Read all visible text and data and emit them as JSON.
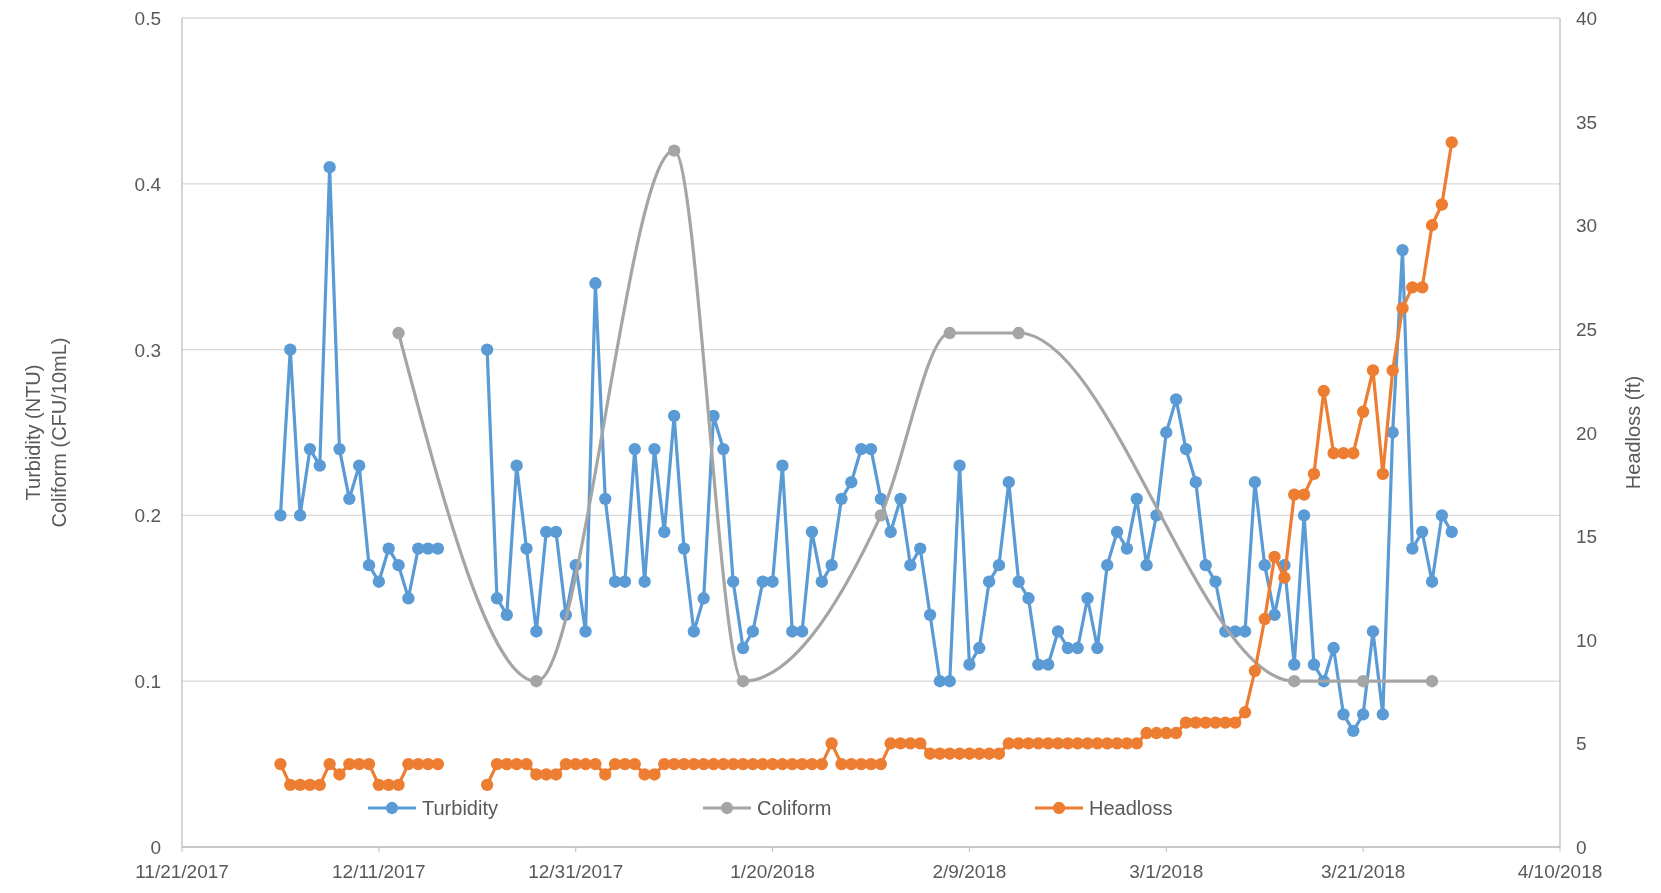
{
  "chart_data": {
    "type": "line",
    "ylabel": "Turbidity (NTU)\nColiform (CFU/10mL)",
    "y2label": "Headloss (ft)",
    "xlim": [
      "2017-11-21",
      "2018-04-10"
    ],
    "xticks": [
      {
        "value": "2017-11-21",
        "label": "11/21/2017"
      },
      {
        "value": "2017-12-11",
        "label": "12/11/2017"
      },
      {
        "value": "2017-12-31",
        "label": "12/31/2017"
      },
      {
        "value": "2018-01-20",
        "label": "1/20/2018"
      },
      {
        "value": "2018-02-09",
        "label": "2/9/2018"
      },
      {
        "value": "2018-03-01",
        "label": "3/1/2018"
      },
      {
        "value": "2018-03-21",
        "label": "3/21/2018"
      },
      {
        "value": "2018-04-10",
        "label": "4/10/2018"
      }
    ],
    "ylim": [
      0,
      0.5
    ],
    "yticks": [
      0,
      0.1,
      0.2,
      0.3,
      0.4,
      0.5
    ],
    "y2lim": [
      0,
      40
    ],
    "y2ticks": [
      0,
      5,
      10,
      15,
      20,
      25,
      30,
      35,
      40
    ],
    "grid": "y",
    "legend": "bottom",
    "marker": "circle",
    "line_style": "solid",
    "x": [
      "2017-12-01",
      "2017-12-02",
      "2017-12-03",
      "2017-12-04",
      "2017-12-05",
      "2017-12-06",
      "2017-12-07",
      "2017-12-08",
      "2017-12-09",
      "2017-12-10",
      "2017-12-11",
      "2017-12-12",
      "2017-12-13",
      "2017-12-14",
      "2017-12-15",
      "2017-12-16",
      "2017-12-17",
      "2017-12-18",
      "2017-12-19",
      "2017-12-20",
      "2017-12-21",
      "2017-12-22",
      "2017-12-23",
      "2017-12-24",
      "2017-12-25",
      "2017-12-26",
      "2017-12-27",
      "2017-12-28",
      "2017-12-29",
      "2017-12-30",
      "2017-12-31",
      "2018-01-01",
      "2018-01-02",
      "2018-01-03",
      "2018-01-04",
      "2018-01-05",
      "2018-01-06",
      "2018-01-07",
      "2018-01-08",
      "2018-01-09",
      "2018-01-10",
      "2018-01-11",
      "2018-01-12",
      "2018-01-13",
      "2018-01-14",
      "2018-01-15",
      "2018-01-16",
      "2018-01-17",
      "2018-01-18",
      "2018-01-19",
      "2018-01-20",
      "2018-01-21",
      "2018-01-22",
      "2018-01-23",
      "2018-01-24",
      "2018-01-25",
      "2018-01-26",
      "2018-01-27",
      "2018-01-28",
      "2018-01-29",
      "2018-01-30",
      "2018-01-31",
      "2018-02-01",
      "2018-02-02",
      "2018-02-03",
      "2018-02-04",
      "2018-02-05",
      "2018-02-06",
      "2018-02-07",
      "2018-02-08",
      "2018-02-09",
      "2018-02-10",
      "2018-02-11",
      "2018-02-12",
      "2018-02-13",
      "2018-02-14",
      "2018-02-15",
      "2018-02-16",
      "2018-02-17",
      "2018-02-18",
      "2018-02-19",
      "2018-02-20",
      "2018-02-21",
      "2018-02-22",
      "2018-02-23",
      "2018-02-24",
      "2018-02-25",
      "2018-02-26",
      "2018-02-27",
      "2018-02-28",
      "2018-03-01",
      "2018-03-02",
      "2018-03-03",
      "2018-03-04",
      "2018-03-05",
      "2018-03-06",
      "2018-03-07",
      "2018-03-08",
      "2018-03-09",
      "2018-03-10",
      "2018-03-11",
      "2018-03-12",
      "2018-03-13",
      "2018-03-14",
      "2018-03-15",
      "2018-03-16",
      "2018-03-17",
      "2018-03-18",
      "2018-03-19",
      "2018-03-20",
      "2018-03-21",
      "2018-03-22",
      "2018-03-23",
      "2018-03-24",
      "2018-03-25",
      "2018-03-26",
      "2018-03-27",
      "2018-03-28",
      "2018-03-29",
      "2018-03-30"
    ],
    "series": [
      {
        "name": "Turbidity",
        "color": "#5b9bd5",
        "values": [
          0.2,
          0.3,
          0.2,
          0.24,
          0.23,
          0.41,
          0.24,
          0.21,
          0.23,
          0.17,
          0.16,
          0.18,
          0.17,
          0.15,
          0.18,
          0.18,
          0.18,
          null,
          null,
          null,
          null,
          0.3,
          0.15,
          0.14,
          0.23,
          0.18,
          0.13,
          0.19,
          0.19,
          0.14,
          0.17,
          0.13,
          0.34,
          0.21,
          0.16,
          0.16,
          0.24,
          0.16,
          0.24,
          0.19,
          0.26,
          0.18,
          0.13,
          0.15,
          0.26,
          0.24,
          0.16,
          0.12,
          0.13,
          0.16,
          0.16,
          0.23,
          0.13,
          0.13,
          0.19,
          0.16,
          0.17,
          0.21,
          0.22,
          0.24,
          0.24,
          0.21,
          0.19,
          0.21,
          0.17,
          0.18,
          0.14,
          0.1,
          0.1,
          0.23,
          0.11,
          0.12,
          0.16,
          0.17,
          0.22,
          0.16,
          0.15,
          0.11,
          0.11,
          0.13,
          0.12,
          0.12,
          0.15,
          0.12,
          0.17,
          0.19,
          0.18,
          0.21,
          0.17,
          0.2,
          0.25,
          0.27,
          0.24,
          0.22,
          0.17,
          0.16,
          0.13,
          0.13,
          0.13,
          0.22,
          0.17,
          0.14,
          0.17,
          0.11,
          0.2,
          0.11,
          0.1,
          0.12,
          0.08,
          0.07,
          0.08,
          0.13,
          0.08,
          0.25,
          0.36,
          0.18,
          0.19,
          0.16,
          0.2,
          0.19
        ]
      },
      {
        "name": "Coliform",
        "color": "#a5a5a5",
        "x": [
          "2017-12-13",
          "2017-12-27",
          "2018-01-10",
          "2018-01-17",
          "2018-01-31",
          "2018-02-07",
          "2018-02-14",
          "2018-03-14",
          "2018-03-21",
          "2018-03-28"
        ],
        "values": [
          0.31,
          0.1,
          0.42,
          0.1,
          0.2,
          0.31,
          0.31,
          0.1,
          0.1,
          0.1
        ]
      },
      {
        "name": "Headloss",
        "color": "#ed7d31",
        "axis": "y2",
        "values": [
          4,
          3,
          3,
          3,
          3,
          4,
          3.5,
          4,
          4,
          4,
          3,
          3,
          3,
          4,
          4,
          4,
          4,
          null,
          null,
          null,
          null,
          3,
          4,
          4,
          4,
          4,
          3.5,
          3.5,
          3.5,
          4,
          4,
          4,
          4,
          3.5,
          4,
          4,
          4,
          3.5,
          3.5,
          4,
          4,
          4,
          4,
          4,
          4,
          4,
          4,
          4,
          4,
          4,
          4,
          4,
          4,
          4,
          4,
          4,
          5,
          4,
          4,
          4,
          4,
          4,
          5,
          5,
          5,
          5,
          4.5,
          4.5,
          4.5,
          4.5,
          4.5,
          4.5,
          4.5,
          4.5,
          5,
          5,
          5,
          5,
          5,
          5,
          5,
          5,
          5,
          5,
          5,
          5,
          5,
          5,
          5.5,
          5.5,
          5.5,
          5.5,
          6,
          6,
          6,
          6,
          6,
          6,
          6.5,
          8.5,
          11,
          14,
          13,
          17,
          17,
          18,
          22,
          19,
          19,
          19,
          21,
          23,
          18,
          23,
          26,
          27,
          27,
          30,
          31,
          34
        ]
      }
    ]
  }
}
